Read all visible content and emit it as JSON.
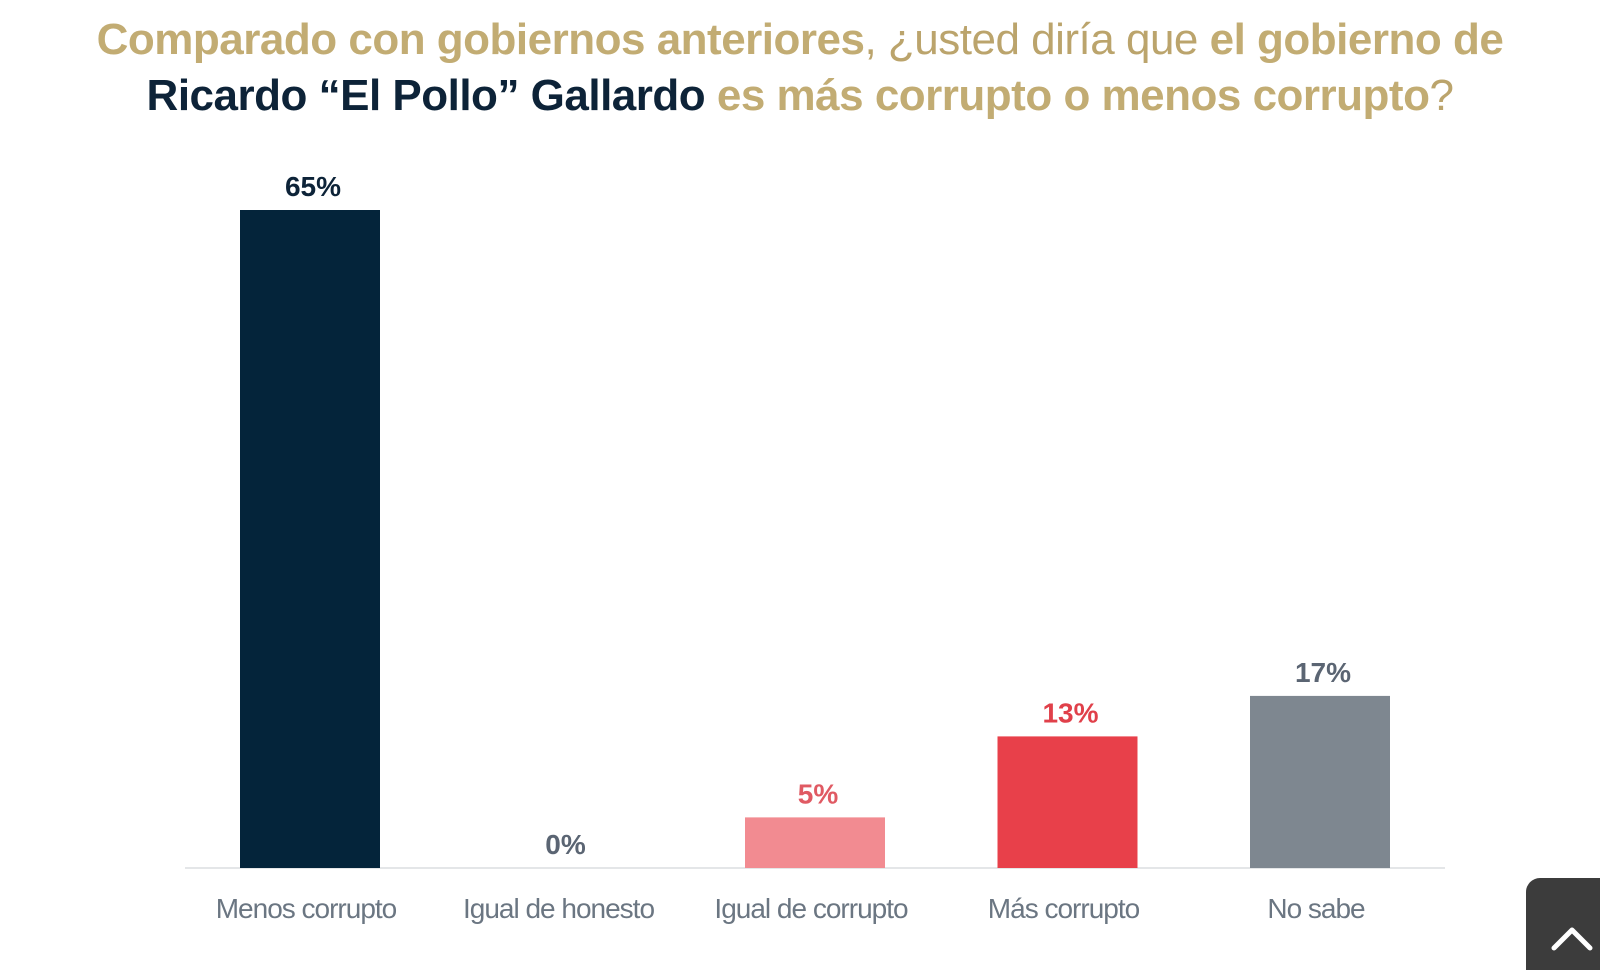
{
  "title": {
    "part1": "Comparado con gobiernos anteriores",
    "part2": ", ¿usted diría que ",
    "part3": "el gobierno de ",
    "part4": "Ricardo “El Pollo” Gallardo",
    "part5": " es más corrupto o menos corrupto",
    "part6": "?"
  },
  "chart_data": {
    "type": "bar",
    "categories": [
      "Menos corrupto",
      "Igual de honesto",
      "Igual de corrupto",
      "Más corrupto",
      "No sabe"
    ],
    "values": [
      65,
      0,
      5,
      13,
      17
    ],
    "value_labels": [
      "65%",
      "0%",
      "5%",
      "13%",
      "17%"
    ],
    "bar_colors": [
      "#04243a",
      "#04243a",
      "#f28b91",
      "#e8404a",
      "#7e8790"
    ],
    "label_colors": [
      "#0d2338",
      "#5b6573",
      "#e05a63",
      "#e0404a",
      "#5b6573"
    ],
    "ylim": [
      0,
      65
    ],
    "grid": false,
    "legend": "none"
  },
  "scroll_button": {
    "icon": "chevron-up-icon"
  }
}
